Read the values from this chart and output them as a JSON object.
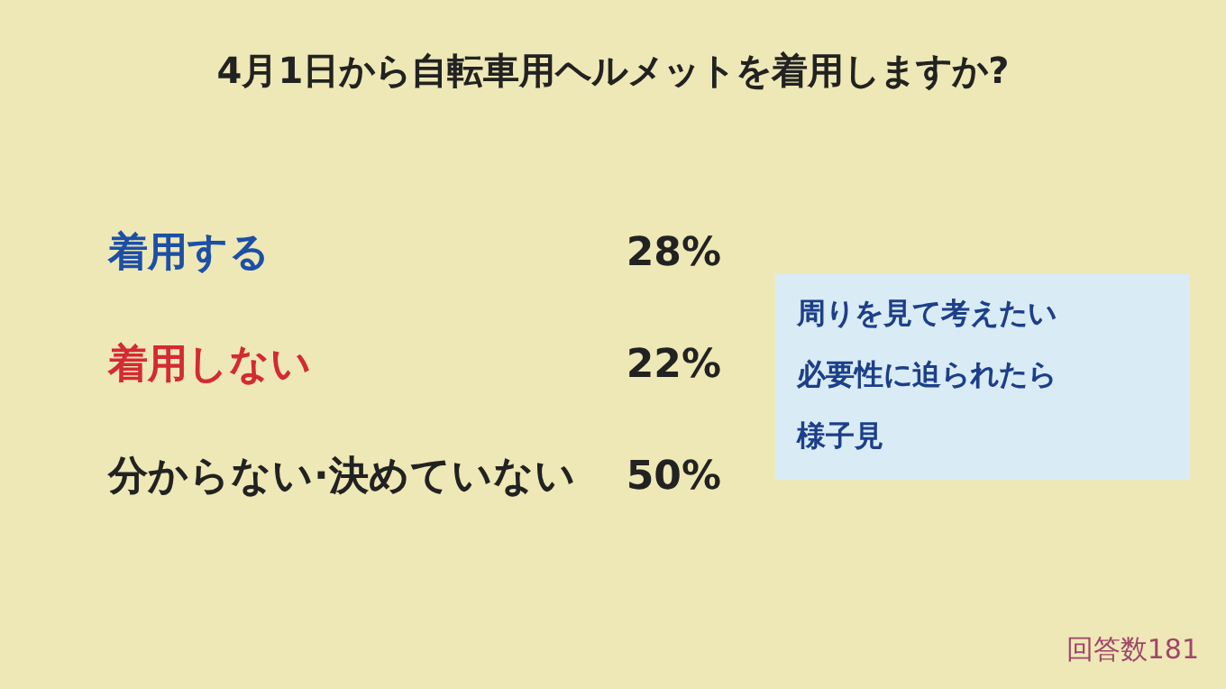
{
  "chart_data": {
    "type": "other",
    "title": "4月1日から自転車用ヘルメットを着用しますか?",
    "categories": [
      "着用する",
      "着用しない",
      "分からない·決めていない"
    ],
    "values": [
      28,
      22,
      50
    ],
    "value_labels": [
      "28%",
      "22%",
      "50%"
    ],
    "colors": [
      "#1d4fa6",
      "#d42a33",
      "#222222"
    ],
    "annotations": [
      "周りを見て考えたい",
      "必要性に迫られたら",
      "様子見",
      "回答数181"
    ]
  }
}
